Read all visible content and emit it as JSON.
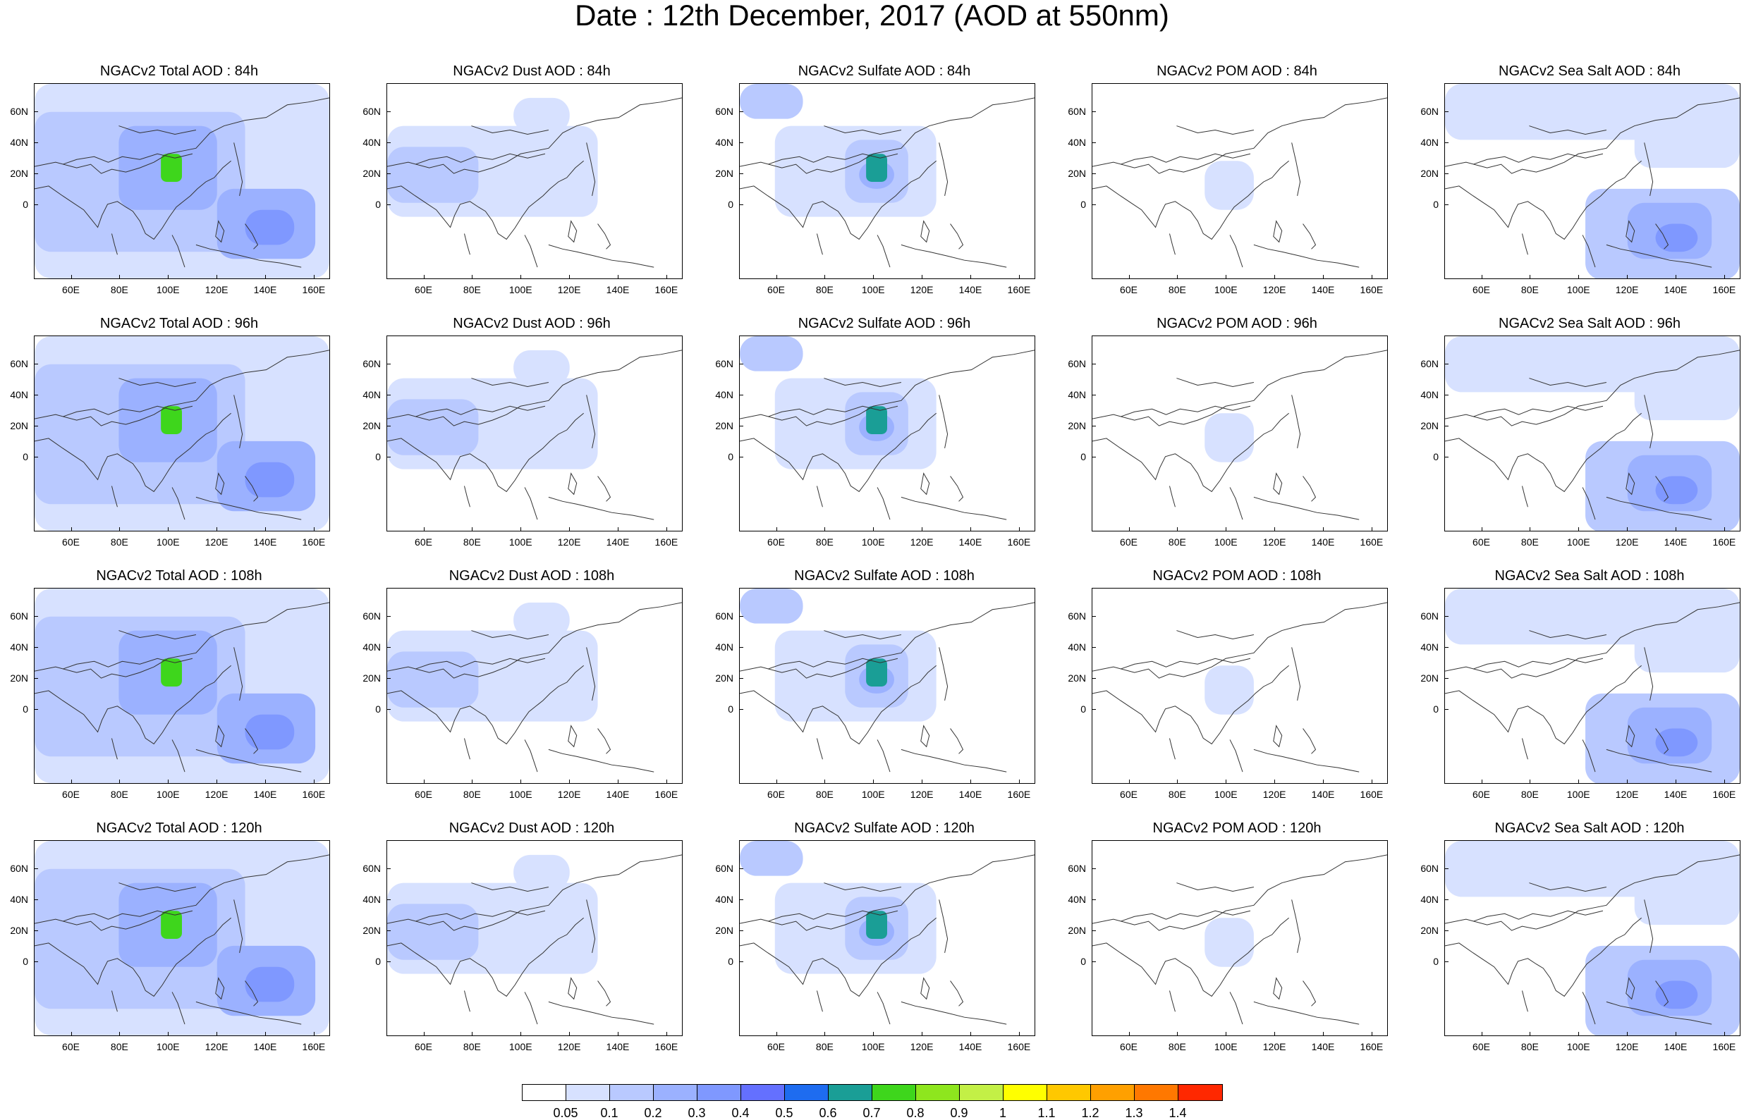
{
  "title": "Date : 12th December, 2017 (AOD at 550nm)",
  "columns": [
    {
      "key": "total",
      "titles": [
        "NGACv2 Total AOD : 84h",
        "NGACv2 Total AOD : 96h",
        "NGACv2 Total AOD : 108h",
        "NGACv2 Total AOD : 120h"
      ]
    },
    {
      "key": "dust",
      "titles": [
        "NGACv2 Dust AOD : 84h",
        "NGACv2 Dust AOD : 96h",
        "NGACv2 Dust AOD : 108h",
        "NGACv2 Dust AOD : 120h"
      ]
    },
    {
      "key": "sulfate",
      "titles": [
        "NGACv2 Sulfate AOD : 84h",
        "NGACv2 Sulfate AOD : 96h",
        "NGACv2 Sulfate AOD : 108h",
        "NGACv2 Sulfate AOD : 120h"
      ]
    },
    {
      "key": "pom",
      "titles": [
        "NGACv2 POM AOD : 84h",
        "NGACv2 POM AOD : 96h",
        "NGACv2 POM AOD : 108h",
        "NGACv2 POM AOD : 120h"
      ]
    },
    {
      "key": "seasalt",
      "titles": [
        "NGACv2 Sea Salt AOD : 84h",
        "NGACv2 Sea Salt AOD : 96h",
        "NGACv2 Sea Salt AOD : 108h",
        "NGACv2 Sea Salt  AOD : 120h"
      ]
    }
  ],
  "lat_ticks": [
    "60N",
    "40N",
    "20N",
    "0"
  ],
  "lon_ticks": [
    "60E",
    "80E",
    "100E",
    "120E",
    "140E",
    "160E"
  ],
  "colorbar": {
    "colors": [
      "#ffffff",
      "#d7e1ff",
      "#b9c9ff",
      "#9bb1ff",
      "#7f98ff",
      "#6470ff",
      "#1e6cf0",
      "#1a9e96",
      "#3ed61c",
      "#8ee61e",
      "#c3f046",
      "#ffff00",
      "#ffc800",
      "#ffa000",
      "#ff7800",
      "#ff2800"
    ],
    "labels": [
      "0.05",
      "0.1",
      "0.2",
      "0.3",
      "0.4",
      "0.5",
      "0.6",
      "0.7",
      "0.8",
      "0.9",
      "1",
      "1.1",
      "1.2",
      "1.3",
      "1.4"
    ]
  }
}
